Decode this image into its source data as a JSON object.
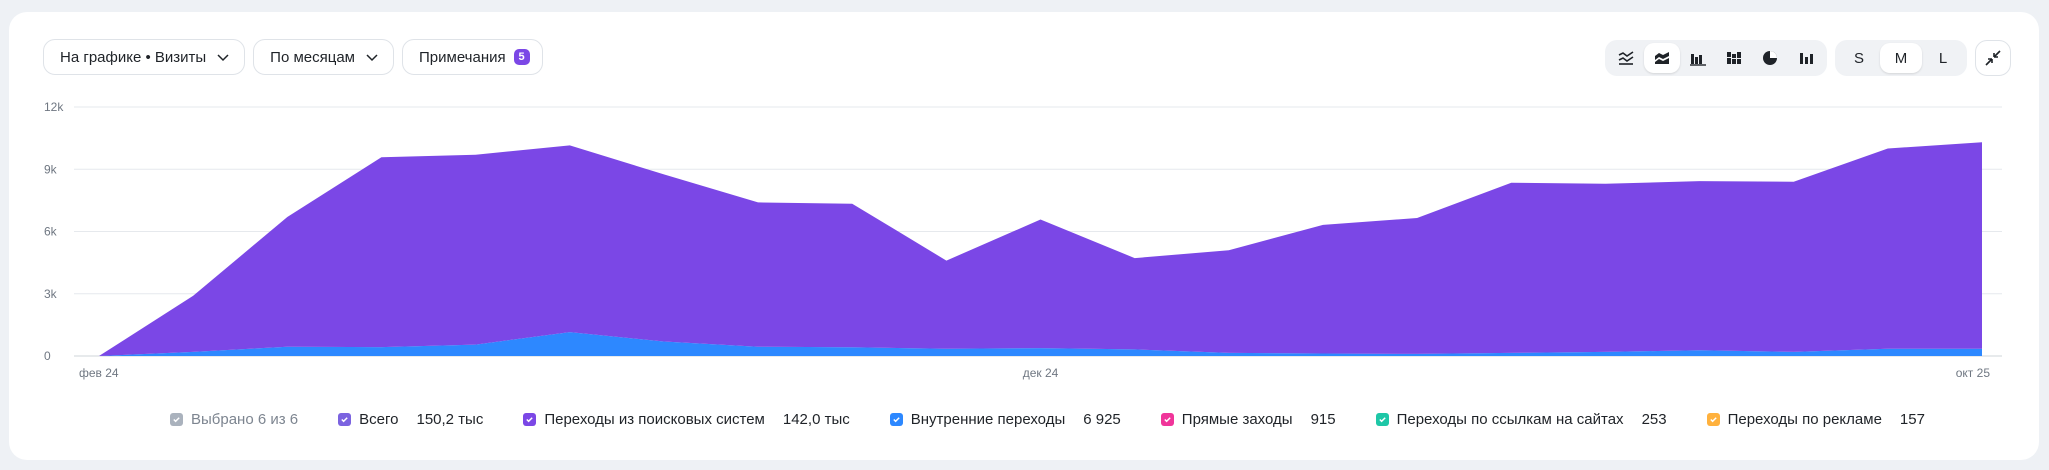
{
  "toolbar": {
    "metric_dropdown": "На графике • Визиты",
    "period_dropdown": "По месяцам",
    "notes_label": "Примечания",
    "notes_count": "5",
    "chart_types": [
      {
        "icon": "area-lines-icon",
        "active": false
      },
      {
        "icon": "stacked-area-icon",
        "active": true
      },
      {
        "icon": "grouped-bar-icon",
        "active": false
      },
      {
        "icon": "stacked-bar-icon",
        "active": false
      },
      {
        "icon": "pie-chart-icon",
        "active": false
      },
      {
        "icon": "bar-chart-icon",
        "active": false
      }
    ],
    "sizes": [
      {
        "label": "S",
        "active": false
      },
      {
        "label": "M",
        "active": true
      },
      {
        "label": "L",
        "active": false
      }
    ]
  },
  "legend": {
    "summary": "Выбрано 6 из 6",
    "items": [
      {
        "label": "Всего",
        "value": "150,2 тыс",
        "color": "#7b63e0"
      },
      {
        "label": "Переходы из поисковых систем",
        "value": "142,0 тыс",
        "color": "#7b47e6"
      },
      {
        "label": "Внутренние переходы",
        "value": "6 925",
        "color": "#2d88ff"
      },
      {
        "label": "Прямые заходы",
        "value": "915",
        "color": "#f0359a"
      },
      {
        "label": "Переходы по ссылкам на сайтах",
        "value": "253",
        "color": "#1ec7a7"
      },
      {
        "label": "Переходы по рекламе",
        "value": "157",
        "color": "#ffb13d"
      }
    ]
  },
  "chart_data": {
    "type": "area",
    "stacked": true,
    "x_ticks": [
      {
        "label": "фев 24",
        "index": 0
      },
      {
        "label": "дек 24",
        "index": 10
      },
      {
        "label": "окт 25",
        "index": 20
      }
    ],
    "y_ticks": [
      "0",
      "3k",
      "6k",
      "9k",
      "12k"
    ],
    "ylim": [
      0,
      12000
    ],
    "grid": true,
    "series": [
      {
        "name": "Внутренние переходы",
        "color": "#2d88ff",
        "values": [
          0,
          200,
          450,
          430,
          550,
          1150,
          700,
          450,
          420,
          350,
          380,
          320,
          150,
          120,
          100,
          150,
          200,
          280,
          200,
          350,
          350
        ]
      },
      {
        "name": "Переходы из поисковых систем",
        "color": "#7b47e6",
        "values": [
          0,
          2700,
          6250,
          9150,
          9150,
          9000,
          8050,
          6950,
          6920,
          4250,
          6200,
          4400,
          4950,
          6200,
          6550,
          8200,
          8100,
          8150,
          8200,
          9650,
          9950
        ]
      }
    ]
  }
}
